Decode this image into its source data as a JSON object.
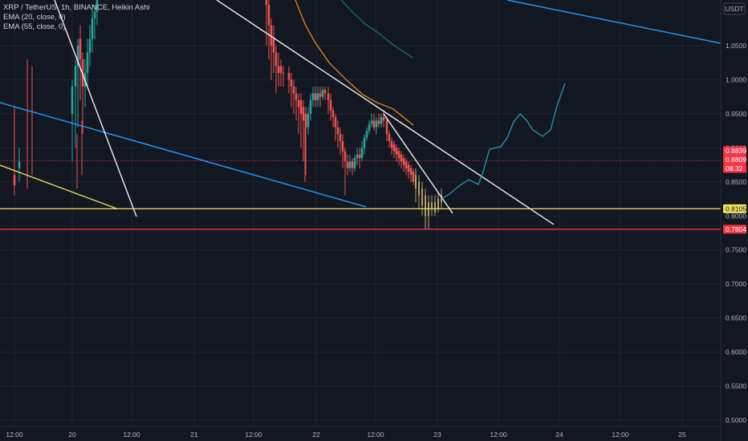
{
  "legend": {
    "symbol_line": "XRP / TetherUS, 1h, BINANCE, Heikin Ashi",
    "ema1": "EMA (20, close, 0)",
    "ema2": "EMA (55, close, 0)"
  },
  "colors": {
    "background": "#131722",
    "grid": "#1f2433",
    "up": "#26a69a",
    "down": "#ef5350",
    "projection_up": "#b8a062",
    "ema20": "#f7931a",
    "ema55": "#1e6f68",
    "support_yellow": "#f2e35a",
    "support_red": "#f23645",
    "channel_blue": "#2196f3",
    "trend_white": "#ffffff",
    "forecast_path": "#1e9bb0"
  },
  "chart_data": {
    "type": "candlestick",
    "currency": "USDT",
    "y_ticks": [
      "0.5000",
      "0.5500",
      "0.6000",
      "0.6500",
      "0.7000",
      "0.7500",
      "0.8000",
      "0.8500",
      "0.9000",
      "0.9500",
      "1.0000",
      "1.0500"
    ],
    "ylim": [
      0.495,
      1.11
    ],
    "x_ticks": [
      "12:00",
      "20",
      "12:00",
      "21",
      "12:00",
      "22",
      "12:00",
      "23",
      "12:00",
      "24",
      "12:00",
      "25"
    ],
    "price_tags": [
      {
        "value": "0.8839",
        "color": "#f23645"
      },
      {
        "value": "0.8809",
        "color": "#f23645"
      },
      {
        "value": "08:32",
        "color": "#f23645"
      },
      {
        "value": "0.8105",
        "color": "#f2e35a"
      },
      {
        "value": "0.7804",
        "color": "#f23645"
      }
    ],
    "horizontal_levels": [
      {
        "price": 0.8105,
        "color": "#f2e35a"
      },
      {
        "price": 0.7804,
        "color": "#f23645"
      },
      {
        "price": 0.8809,
        "color": "#f23645",
        "dotted": true
      }
    ],
    "candles": [
      [
        0,
        0.98,
        0.99,
        0.85,
        0.87
      ],
      [
        1,
        0.87,
        0.88,
        0.84,
        0.86
      ]
    ]
  }
}
